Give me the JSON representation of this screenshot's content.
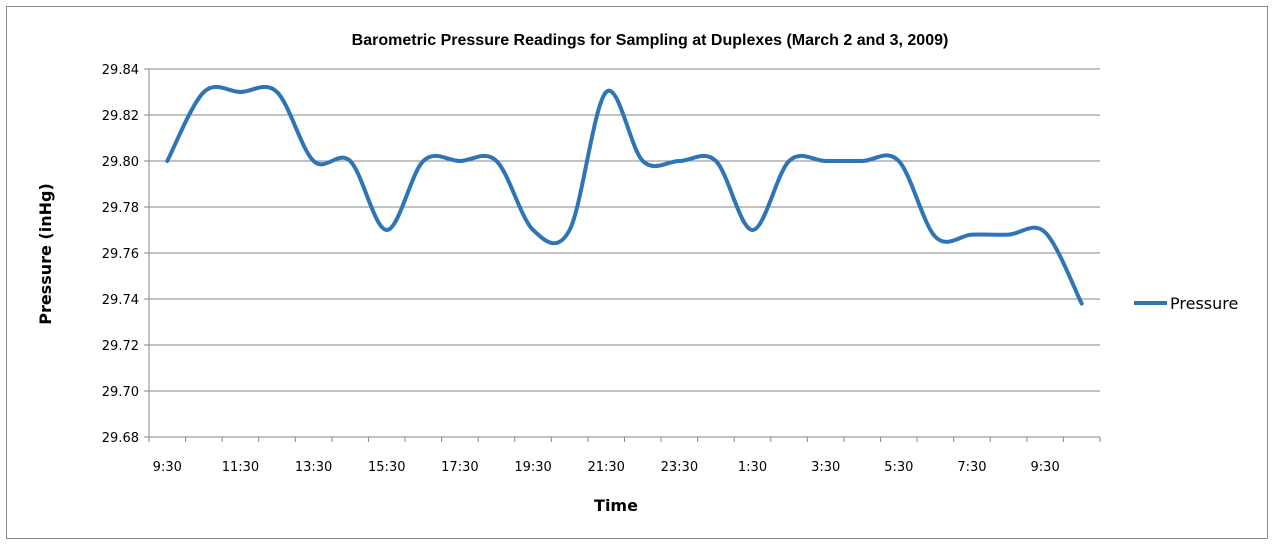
{
  "chart_data": {
    "type": "line",
    "title": "Barometric Pressure Readings for Sampling at Duplexes (March 2 and 3, 2009)",
    "xlabel": "Time",
    "ylabel": "Pressure (inHg)",
    "ylim": [
      29.68,
      29.84
    ],
    "y_ticks": [
      "29.68",
      "29.70",
      "29.72",
      "29.74",
      "29.76",
      "29.78",
      "29.80",
      "29.82",
      "29.84"
    ],
    "x": [
      "9:30",
      "10:30",
      "11:30",
      "12:30",
      "13:30",
      "14:30",
      "15:30",
      "16:30",
      "17:30",
      "18:30",
      "19:30",
      "20:30",
      "21:30",
      "22:30",
      "23:30",
      "0:30",
      "1:30",
      "2:30",
      "3:30",
      "4:30",
      "5:30",
      "6:30",
      "7:30",
      "8:30",
      "9:30",
      "10:30"
    ],
    "x_tick_labels": [
      "9:30",
      "11:30",
      "13:30",
      "15:30",
      "17:30",
      "19:30",
      "21:30",
      "23:30",
      "1:30",
      "3:30",
      "5:30",
      "7:30",
      "9:30"
    ],
    "series": [
      {
        "name": "Pressure",
        "color": "#2e75b6",
        "values": [
          29.8,
          29.83,
          29.83,
          29.83,
          29.8,
          29.8,
          29.77,
          29.8,
          29.8,
          29.8,
          29.77,
          29.77,
          29.83,
          29.8,
          29.8,
          29.8,
          29.77,
          29.8,
          29.8,
          29.8,
          29.8,
          29.767,
          29.768,
          29.768,
          29.769,
          29.738
        ]
      }
    ],
    "grid": true,
    "smooth": true,
    "legend": "right"
  }
}
